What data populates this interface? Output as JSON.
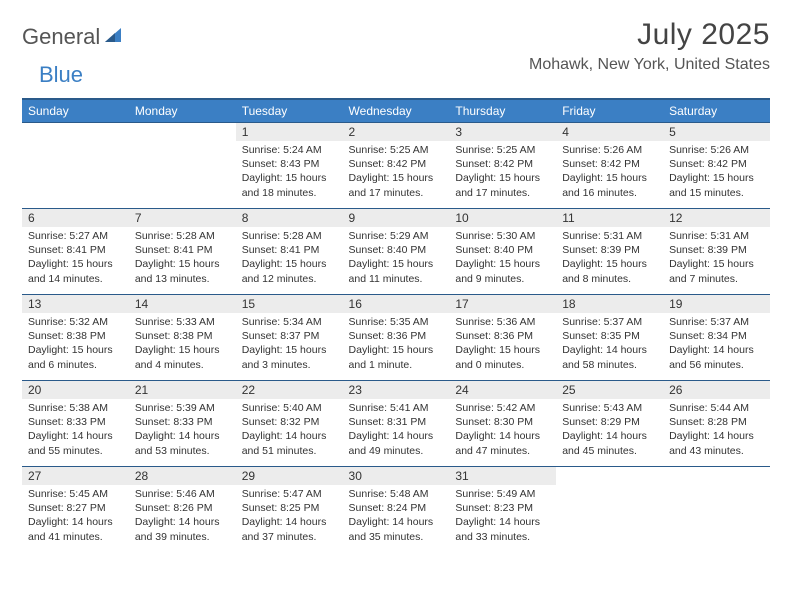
{
  "logo": {
    "word1": "General",
    "word2": "Blue",
    "icon_color": "#3b7fc4"
  },
  "title": "July 2025",
  "location": "Mohawk, New York, United States",
  "colors": {
    "header_bg": "#3b7fc4",
    "header_border": "#2a5a8a",
    "daynum_bg": "#ececec",
    "text": "#333333"
  },
  "day_headers": [
    "Sunday",
    "Monday",
    "Tuesday",
    "Wednesday",
    "Thursday",
    "Friday",
    "Saturday"
  ],
  "weeks": [
    [
      null,
      null,
      {
        "n": "1",
        "sr": "5:24 AM",
        "ss": "8:43 PM",
        "dl": "15 hours and 18 minutes."
      },
      {
        "n": "2",
        "sr": "5:25 AM",
        "ss": "8:42 PM",
        "dl": "15 hours and 17 minutes."
      },
      {
        "n": "3",
        "sr": "5:25 AM",
        "ss": "8:42 PM",
        "dl": "15 hours and 17 minutes."
      },
      {
        "n": "4",
        "sr": "5:26 AM",
        "ss": "8:42 PM",
        "dl": "15 hours and 16 minutes."
      },
      {
        "n": "5",
        "sr": "5:26 AM",
        "ss": "8:42 PM",
        "dl": "15 hours and 15 minutes."
      }
    ],
    [
      {
        "n": "6",
        "sr": "5:27 AM",
        "ss": "8:41 PM",
        "dl": "15 hours and 14 minutes."
      },
      {
        "n": "7",
        "sr": "5:28 AM",
        "ss": "8:41 PM",
        "dl": "15 hours and 13 minutes."
      },
      {
        "n": "8",
        "sr": "5:28 AM",
        "ss": "8:41 PM",
        "dl": "15 hours and 12 minutes."
      },
      {
        "n": "9",
        "sr": "5:29 AM",
        "ss": "8:40 PM",
        "dl": "15 hours and 11 minutes."
      },
      {
        "n": "10",
        "sr": "5:30 AM",
        "ss": "8:40 PM",
        "dl": "15 hours and 9 minutes."
      },
      {
        "n": "11",
        "sr": "5:31 AM",
        "ss": "8:39 PM",
        "dl": "15 hours and 8 minutes."
      },
      {
        "n": "12",
        "sr": "5:31 AM",
        "ss": "8:39 PM",
        "dl": "15 hours and 7 minutes."
      }
    ],
    [
      {
        "n": "13",
        "sr": "5:32 AM",
        "ss": "8:38 PM",
        "dl": "15 hours and 6 minutes."
      },
      {
        "n": "14",
        "sr": "5:33 AM",
        "ss": "8:38 PM",
        "dl": "15 hours and 4 minutes."
      },
      {
        "n": "15",
        "sr": "5:34 AM",
        "ss": "8:37 PM",
        "dl": "15 hours and 3 minutes."
      },
      {
        "n": "16",
        "sr": "5:35 AM",
        "ss": "8:36 PM",
        "dl": "15 hours and 1 minute."
      },
      {
        "n": "17",
        "sr": "5:36 AM",
        "ss": "8:36 PM",
        "dl": "15 hours and 0 minutes."
      },
      {
        "n": "18",
        "sr": "5:37 AM",
        "ss": "8:35 PM",
        "dl": "14 hours and 58 minutes."
      },
      {
        "n": "19",
        "sr": "5:37 AM",
        "ss": "8:34 PM",
        "dl": "14 hours and 56 minutes."
      }
    ],
    [
      {
        "n": "20",
        "sr": "5:38 AM",
        "ss": "8:33 PM",
        "dl": "14 hours and 55 minutes."
      },
      {
        "n": "21",
        "sr": "5:39 AM",
        "ss": "8:33 PM",
        "dl": "14 hours and 53 minutes."
      },
      {
        "n": "22",
        "sr": "5:40 AM",
        "ss": "8:32 PM",
        "dl": "14 hours and 51 minutes."
      },
      {
        "n": "23",
        "sr": "5:41 AM",
        "ss": "8:31 PM",
        "dl": "14 hours and 49 minutes."
      },
      {
        "n": "24",
        "sr": "5:42 AM",
        "ss": "8:30 PM",
        "dl": "14 hours and 47 minutes."
      },
      {
        "n": "25",
        "sr": "5:43 AM",
        "ss": "8:29 PM",
        "dl": "14 hours and 45 minutes."
      },
      {
        "n": "26",
        "sr": "5:44 AM",
        "ss": "8:28 PM",
        "dl": "14 hours and 43 minutes."
      }
    ],
    [
      {
        "n": "27",
        "sr": "5:45 AM",
        "ss": "8:27 PM",
        "dl": "14 hours and 41 minutes."
      },
      {
        "n": "28",
        "sr": "5:46 AM",
        "ss": "8:26 PM",
        "dl": "14 hours and 39 minutes."
      },
      {
        "n": "29",
        "sr": "5:47 AM",
        "ss": "8:25 PM",
        "dl": "14 hours and 37 minutes."
      },
      {
        "n": "30",
        "sr": "5:48 AM",
        "ss": "8:24 PM",
        "dl": "14 hours and 35 minutes."
      },
      {
        "n": "31",
        "sr": "5:49 AM",
        "ss": "8:23 PM",
        "dl": "14 hours and 33 minutes."
      },
      null,
      null
    ]
  ],
  "labels": {
    "sunrise": "Sunrise:",
    "sunset": "Sunset:",
    "daylight": "Daylight:"
  }
}
